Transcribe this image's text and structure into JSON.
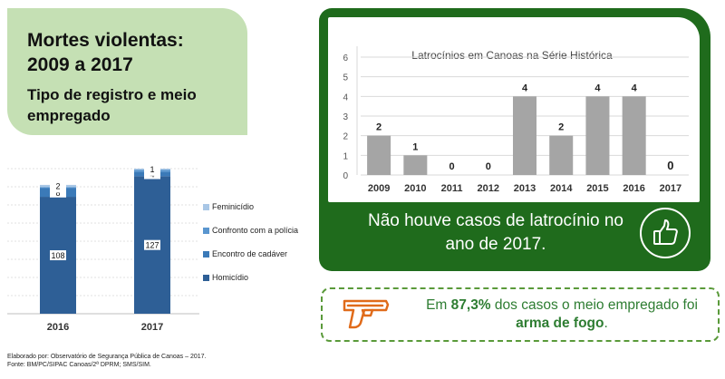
{
  "title_panel": {
    "line1": "Mortes violentas:",
    "line2": "2009 a 2017",
    "line3": "Tipo de registro e meio",
    "line4": "empregado"
  },
  "footnote": {
    "line1": "Elaborado por: Observatório de Segurança Pública de Canoas – 2017.",
    "line2": "Fonte: BM/PC/SIPAC Canoas/2ª DPRM; SMS/SIM."
  },
  "notice": {
    "line1": "Não houve casos de latrocínio no",
    "line2": "ano de 2017."
  },
  "weapon": {
    "prefix": "Em ",
    "percent": "87,3%",
    "middle": " dos casos o meio empregado foi",
    "bold_end": "arma de fogo",
    "suffix": "."
  },
  "icons": {
    "thumbs": "thumbs-up-icon",
    "gun": "pistol-icon"
  },
  "colors": {
    "green_panel": "#1f6b1c",
    "title_bg": "#c5e0b4",
    "bar_gray": "#a5a5a5",
    "homicidio": "#2e5f96",
    "encontro": "#3b7ab8",
    "confronto": "#5a96cf",
    "feminicidio": "#a9c7e6",
    "weapon_text": "#2e7d32",
    "gun_orange": "#e06b1a"
  },
  "chart_data": [
    {
      "type": "bar",
      "stacked": true,
      "categories": [
        "2016",
        "2017"
      ],
      "series": [
        {
          "name": "Homicídio",
          "values": [
            108,
            127
          ]
        },
        {
          "name": "Encontro de cadáver",
          "values": [
            8,
            4
          ]
        },
        {
          "name": "Confronto com a polícia",
          "values": [
            1,
            2
          ]
        },
        {
          "name": "Feminicídio",
          "values": [
            2,
            1
          ]
        }
      ],
      "legend_position": "right",
      "grid": true
    },
    {
      "type": "bar",
      "title": "Latrocínios em Canoas na Série Histórica",
      "categories": [
        "2009",
        "2010",
        "2011",
        "2012",
        "2013",
        "2014",
        "2015",
        "2016",
        "2017"
      ],
      "values": [
        2,
        1,
        0,
        0,
        4,
        2,
        4,
        4,
        0
      ],
      "data_labels": [
        "2",
        "1",
        "0",
        "0",
        "4",
        "2",
        "4",
        "4",
        "0"
      ],
      "ylim": [
        0,
        6
      ],
      "yticks": [
        0,
        1,
        2,
        3,
        4,
        5,
        6
      ],
      "grid": true
    }
  ]
}
